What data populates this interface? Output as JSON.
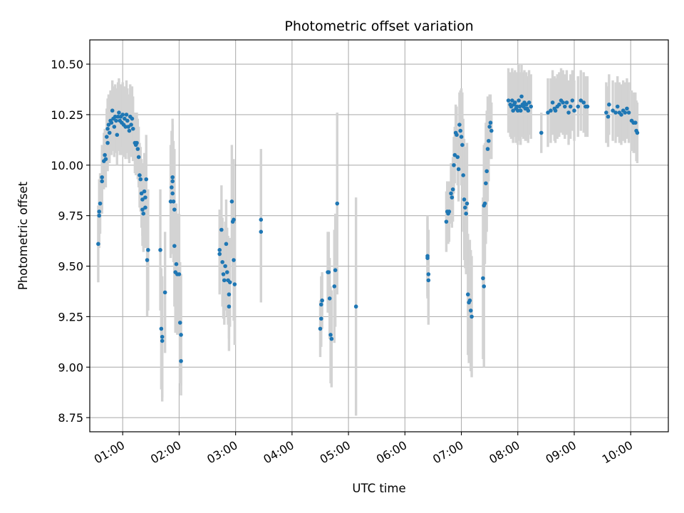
{
  "chart_data": {
    "type": "scatter",
    "title": "Photometric offset variation",
    "xlabel": "UTC time",
    "ylabel": "Photometric offset",
    "x_ticks": [
      "01:00",
      "02:00",
      "03:00",
      "04:00",
      "05:00",
      "06:00",
      "07:00",
      "08:00",
      "09:00",
      "10:00"
    ],
    "y_ticks": [
      "8.75",
      "9.00",
      "9.25",
      "9.50",
      "9.75",
      "10.00",
      "10.25",
      "10.50"
    ],
    "xlim": [
      "00:25",
      "10:40"
    ],
    "ylim": [
      8.68,
      10.62
    ],
    "grid": true,
    "colors": {
      "points": "#1f77b4",
      "errorbars": "#d3d3d3",
      "grid": "#b0b0b0"
    },
    "points": [
      {
        "t": "00:34",
        "y": 9.61,
        "e": 0.19
      },
      {
        "t": "00:35",
        "y": 9.75,
        "e": 0.16
      },
      {
        "t": "00:35",
        "y": 9.77,
        "e": 0.16
      },
      {
        "t": "00:36",
        "y": 9.81,
        "e": 0.15
      },
      {
        "t": "00:38",
        "y": 9.94,
        "e": 0.16
      },
      {
        "t": "00:38",
        "y": 9.92,
        "e": 0.16
      },
      {
        "t": "00:40",
        "y": 10.02,
        "e": 0.14
      },
      {
        "t": "00:41",
        "y": 10.05,
        "e": 0.13
      },
      {
        "t": "00:42",
        "y": 10.03,
        "e": 0.14
      },
      {
        "t": "00:43",
        "y": 10.14,
        "e": 0.14
      },
      {
        "t": "00:44",
        "y": 10.18,
        "e": 0.15
      },
      {
        "t": "00:44",
        "y": 10.11,
        "e": 0.14
      },
      {
        "t": "00:45",
        "y": 10.2,
        "e": 0.15
      },
      {
        "t": "00:46",
        "y": 10.16,
        "e": 0.15
      },
      {
        "t": "00:47",
        "y": 10.22,
        "e": 0.15
      },
      {
        "t": "00:48",
        "y": 10.21,
        "e": 0.16
      },
      {
        "t": "00:49",
        "y": 10.27,
        "e": 0.15
      },
      {
        "t": "00:50",
        "y": 10.23,
        "e": 0.16
      },
      {
        "t": "00:51",
        "y": 10.19,
        "e": 0.15
      },
      {
        "t": "00:52",
        "y": 10.24,
        "e": 0.16
      },
      {
        "t": "00:53",
        "y": 10.22,
        "e": 0.16
      },
      {
        "t": "00:54",
        "y": 10.15,
        "e": 0.15
      },
      {
        "t": "00:55",
        "y": 10.24,
        "e": 0.17
      },
      {
        "t": "00:56",
        "y": 10.26,
        "e": 0.17
      },
      {
        "t": "00:57",
        "y": 10.22,
        "e": 0.17
      },
      {
        "t": "00:58",
        "y": 10.24,
        "e": 0.16
      },
      {
        "t": "00:59",
        "y": 10.21,
        "e": 0.16
      },
      {
        "t": "01:00",
        "y": 10.25,
        "e": 0.16
      },
      {
        "t": "01:01",
        "y": 10.2,
        "e": 0.16
      },
      {
        "t": "01:02",
        "y": 10.23,
        "e": 0.16
      },
      {
        "t": "01:03",
        "y": 10.19,
        "e": 0.16
      },
      {
        "t": "01:04",
        "y": 10.25,
        "e": 0.17
      },
      {
        "t": "01:05",
        "y": 10.22,
        "e": 0.16
      },
      {
        "t": "01:06",
        "y": 10.19,
        "e": 0.16
      },
      {
        "t": "01:07",
        "y": 10.17,
        "e": 0.16
      },
      {
        "t": "01:08",
        "y": 10.24,
        "e": 0.16
      },
      {
        "t": "01:09",
        "y": 10.2,
        "e": 0.16
      },
      {
        "t": "01:10",
        "y": 10.23,
        "e": 0.16
      },
      {
        "t": "01:11",
        "y": 10.18,
        "e": 0.16
      },
      {
        "t": "01:13",
        "y": 10.11,
        "e": 0.15
      },
      {
        "t": "01:14",
        "y": 10.1,
        "e": 0.15
      },
      {
        "t": "01:15",
        "y": 10.11,
        "e": 0.15
      },
      {
        "t": "01:16",
        "y": 10.08,
        "e": 0.15
      },
      {
        "t": "01:17",
        "y": 10.04,
        "e": 0.15
      },
      {
        "t": "01:18",
        "y": 9.95,
        "e": 0.16
      },
      {
        "t": "01:19",
        "y": 9.93,
        "e": 0.16
      },
      {
        "t": "01:20",
        "y": 9.86,
        "e": 0.17
      },
      {
        "t": "01:21",
        "y": 9.83,
        "e": 0.18
      },
      {
        "t": "01:21",
        "y": 9.78,
        "e": 0.18
      },
      {
        "t": "01:22",
        "y": 9.76,
        "e": 0.19
      },
      {
        "t": "01:23",
        "y": 9.87,
        "e": 0.19
      },
      {
        "t": "01:24",
        "y": 9.84,
        "e": 0.2
      },
      {
        "t": "01:24",
        "y": 9.79,
        "e": 0.2
      },
      {
        "t": "01:25",
        "y": 9.93,
        "e": 0.22
      },
      {
        "t": "01:26",
        "y": 9.53,
        "e": 0.28
      },
      {
        "t": "01:27",
        "y": 9.58,
        "e": 0.3
      },
      {
        "t": "01:40",
        "y": 9.58,
        "e": 0.3
      },
      {
        "t": "01:41",
        "y": 9.19,
        "e": 0.3
      },
      {
        "t": "01:42",
        "y": 9.13,
        "e": 0.3
      },
      {
        "t": "01:42",
        "y": 9.15,
        "e": 0.3
      },
      {
        "t": "01:45",
        "y": 9.37,
        "e": 0.3
      },
      {
        "t": "01:51",
        "y": 9.82,
        "e": 0.28
      },
      {
        "t": "01:52",
        "y": 9.89,
        "e": 0.28
      },
      {
        "t": "01:53",
        "y": 9.94,
        "e": 0.29
      },
      {
        "t": "01:53",
        "y": 9.92,
        "e": 0.28
      },
      {
        "t": "01:53",
        "y": 9.86,
        "e": 0.3
      },
      {
        "t": "01:54",
        "y": 9.82,
        "e": 0.3
      },
      {
        "t": "01:55",
        "y": 9.78,
        "e": 0.3
      },
      {
        "t": "01:55",
        "y": 9.6,
        "e": 0.3
      },
      {
        "t": "01:56",
        "y": 9.47,
        "e": 0.3
      },
      {
        "t": "01:57",
        "y": 9.51,
        "e": 0.3
      },
      {
        "t": "01:58",
        "y": 9.46,
        "e": 0.3
      },
      {
        "t": "02:00",
        "y": 9.46,
        "e": 0.3
      },
      {
        "t": "02:01",
        "y": 9.22,
        "e": 0.3
      },
      {
        "t": "02:02",
        "y": 9.16,
        "e": 0.3
      },
      {
        "t": "02:02",
        "y": 9.03,
        "e": 0.12
      },
      {
        "t": "02:43",
        "y": 9.58,
        "e": 0.2
      },
      {
        "t": "02:43",
        "y": 9.56,
        "e": 0.2
      },
      {
        "t": "02:45",
        "y": 9.68,
        "e": 0.22
      },
      {
        "t": "02:46",
        "y": 9.52,
        "e": 0.22
      },
      {
        "t": "02:47",
        "y": 9.46,
        "e": 0.22
      },
      {
        "t": "02:48",
        "y": 9.43,
        "e": 0.22
      },
      {
        "t": "02:49",
        "y": 9.5,
        "e": 0.22
      },
      {
        "t": "02:50",
        "y": 9.61,
        "e": 0.22
      },
      {
        "t": "02:51",
        "y": 9.47,
        "e": 0.22
      },
      {
        "t": "02:52",
        "y": 9.43,
        "e": 0.22
      },
      {
        "t": "02:53",
        "y": 9.36,
        "e": 0.22
      },
      {
        "t": "02:53",
        "y": 9.3,
        "e": 0.22
      },
      {
        "t": "02:54",
        "y": 9.42,
        "e": 0.22
      },
      {
        "t": "02:56",
        "y": 9.82,
        "e": 0.28
      },
      {
        "t": "02:57",
        "y": 9.72,
        "e": 0.3
      },
      {
        "t": "02:58",
        "y": 9.73,
        "e": 0.3
      },
      {
        "t": "02:58",
        "y": 9.53,
        "e": 0.3
      },
      {
        "t": "02:59",
        "y": 9.41,
        "e": 0.3
      },
      {
        "t": "03:27",
        "y": 9.73,
        "e": 0.35
      },
      {
        "t": "03:27",
        "y": 9.67,
        "e": 0.35
      },
      {
        "t": "04:30",
        "y": 9.19,
        "e": 0.14
      },
      {
        "t": "04:31",
        "y": 9.24,
        "e": 0.14
      },
      {
        "t": "04:31",
        "y": 9.31,
        "e": 0.14
      },
      {
        "t": "04:32",
        "y": 9.33,
        "e": 0.14
      },
      {
        "t": "04:38",
        "y": 9.47,
        "e": 0.2
      },
      {
        "t": "04:39",
        "y": 9.47,
        "e": 0.2
      },
      {
        "t": "04:40",
        "y": 9.34,
        "e": 0.2
      },
      {
        "t": "04:41",
        "y": 9.16,
        "e": 0.24
      },
      {
        "t": "04:42",
        "y": 9.14,
        "e": 0.24
      },
      {
        "t": "04:45",
        "y": 9.4,
        "e": 0.28
      },
      {
        "t": "04:46",
        "y": 9.48,
        "e": 0.28
      },
      {
        "t": "04:48",
        "y": 9.81,
        "e": 0.45
      },
      {
        "t": "05:08",
        "y": 9.3,
        "e": 0.54
      },
      {
        "t": "06:24",
        "y": 9.55,
        "e": 0.2
      },
      {
        "t": "06:24",
        "y": 9.54,
        "e": 0.2
      },
      {
        "t": "06:25",
        "y": 9.46,
        "e": 0.22
      },
      {
        "t": "06:25",
        "y": 9.43,
        "e": 0.22
      },
      {
        "t": "06:44",
        "y": 9.72,
        "e": 0.15
      },
      {
        "t": "06:45",
        "y": 9.77,
        "e": 0.15
      },
      {
        "t": "06:46",
        "y": 9.76,
        "e": 0.15
      },
      {
        "t": "06:47",
        "y": 9.77,
        "e": 0.15
      },
      {
        "t": "06:49",
        "y": 9.86,
        "e": 0.15
      },
      {
        "t": "06:50",
        "y": 9.84,
        "e": 0.15
      },
      {
        "t": "06:51",
        "y": 9.88,
        "e": 0.16
      },
      {
        "t": "06:52",
        "y": 10.0,
        "e": 0.14
      },
      {
        "t": "06:53",
        "y": 10.05,
        "e": 0.14
      },
      {
        "t": "06:54",
        "y": 10.16,
        "e": 0.14
      },
      {
        "t": "06:55",
        "y": 10.15,
        "e": 0.14
      },
      {
        "t": "06:56",
        "y": 10.04,
        "e": 0.14
      },
      {
        "t": "06:57",
        "y": 9.98,
        "e": 0.16
      },
      {
        "t": "06:58",
        "y": 10.2,
        "e": 0.16
      },
      {
        "t": "06:59",
        "y": 10.17,
        "e": 0.2
      },
      {
        "t": "07:00",
        "y": 10.14,
        "e": 0.24
      },
      {
        "t": "07:01",
        "y": 10.1,
        "e": 0.26
      },
      {
        "t": "07:02",
        "y": 9.95,
        "e": 0.28
      },
      {
        "t": "07:03",
        "y": 9.83,
        "e": 0.3
      },
      {
        "t": "07:04",
        "y": 9.79,
        "e": 0.3
      },
      {
        "t": "07:05",
        "y": 9.76,
        "e": 0.3
      },
      {
        "t": "07:06",
        "y": 9.81,
        "e": 0.3
      },
      {
        "t": "07:07",
        "y": 9.36,
        "e": 0.3
      },
      {
        "t": "07:08",
        "y": 9.32,
        "e": 0.3
      },
      {
        "t": "07:09",
        "y": 9.33,
        "e": 0.3
      },
      {
        "t": "07:10",
        "y": 9.28,
        "e": 0.3
      },
      {
        "t": "07:11",
        "y": 9.25,
        "e": 0.3
      },
      {
        "t": "07:23",
        "y": 9.44,
        "e": 0.4
      },
      {
        "t": "07:24",
        "y": 9.4,
        "e": 0.4
      },
      {
        "t": "07:24",
        "y": 9.8,
        "e": 0.3
      },
      {
        "t": "07:25",
        "y": 9.81,
        "e": 0.3
      },
      {
        "t": "07:26",
        "y": 9.91,
        "e": 0.3
      },
      {
        "t": "07:27",
        "y": 9.97,
        "e": 0.3
      },
      {
        "t": "07:28",
        "y": 10.08,
        "e": 0.26
      },
      {
        "t": "07:29",
        "y": 10.12,
        "e": 0.2
      },
      {
        "t": "07:30",
        "y": 10.19,
        "e": 0.16
      },
      {
        "t": "07:31",
        "y": 10.21,
        "e": 0.14
      },
      {
        "t": "07:32",
        "y": 10.17,
        "e": 0.14
      },
      {
        "t": "07:50",
        "y": 10.32,
        "e": 0.16
      },
      {
        "t": "07:52",
        "y": 10.3,
        "e": 0.16
      },
      {
        "t": "07:53",
        "y": 10.29,
        "e": 0.16
      },
      {
        "t": "07:54",
        "y": 10.32,
        "e": 0.16
      },
      {
        "t": "07:55",
        "y": 10.27,
        "e": 0.16
      },
      {
        "t": "07:56",
        "y": 10.3,
        "e": 0.16
      },
      {
        "t": "07:57",
        "y": 10.31,
        "e": 0.16
      },
      {
        "t": "07:58",
        "y": 10.28,
        "e": 0.17
      },
      {
        "t": "07:59",
        "y": 10.29,
        "e": 0.17
      },
      {
        "t": "08:00",
        "y": 10.27,
        "e": 0.17
      },
      {
        "t": "08:01",
        "y": 10.32,
        "e": 0.18
      },
      {
        "t": "08:02",
        "y": 10.29,
        "e": 0.17
      },
      {
        "t": "08:03",
        "y": 10.27,
        "e": 0.17
      },
      {
        "t": "08:04",
        "y": 10.34,
        "e": 0.16
      },
      {
        "t": "08:05",
        "y": 10.3,
        "e": 0.16
      },
      {
        "t": "08:06",
        "y": 10.29,
        "e": 0.16
      },
      {
        "t": "08:07",
        "y": 10.31,
        "e": 0.16
      },
      {
        "t": "08:08",
        "y": 10.28,
        "e": 0.16
      },
      {
        "t": "08:09",
        "y": 10.3,
        "e": 0.16
      },
      {
        "t": "08:10",
        "y": 10.28,
        "e": 0.16
      },
      {
        "t": "08:11",
        "y": 10.27,
        "e": 0.16
      },
      {
        "t": "08:12",
        "y": 10.31,
        "e": 0.16
      },
      {
        "t": "08:14",
        "y": 10.29,
        "e": 0.16
      },
      {
        "t": "08:25",
        "y": 10.16,
        "e": 0.1
      },
      {
        "t": "08:32",
        "y": 10.26,
        "e": 0.17
      },
      {
        "t": "08:35",
        "y": 10.27,
        "e": 0.16
      },
      {
        "t": "08:37",
        "y": 10.31,
        "e": 0.16
      },
      {
        "t": "08:39",
        "y": 10.28,
        "e": 0.16
      },
      {
        "t": "08:40",
        "y": 10.27,
        "e": 0.16
      },
      {
        "t": "08:42",
        "y": 10.29,
        "e": 0.16
      },
      {
        "t": "08:44",
        "y": 10.3,
        "e": 0.16
      },
      {
        "t": "08:46",
        "y": 10.32,
        "e": 0.16
      },
      {
        "t": "08:48",
        "y": 10.31,
        "e": 0.16
      },
      {
        "t": "08:50",
        "y": 10.29,
        "e": 0.16
      },
      {
        "t": "08:52",
        "y": 10.31,
        "e": 0.16
      },
      {
        "t": "08:54",
        "y": 10.26,
        "e": 0.16
      },
      {
        "t": "08:56",
        "y": 10.29,
        "e": 0.16
      },
      {
        "t": "08:58",
        "y": 10.32,
        "e": 0.15
      },
      {
        "t": "09:00",
        "y": 10.27,
        "e": 0.15
      },
      {
        "t": "09:04",
        "y": 10.29,
        "e": 0.15
      },
      {
        "t": "09:07",
        "y": 10.32,
        "e": 0.15
      },
      {
        "t": "09:10",
        "y": 10.31,
        "e": 0.15
      },
      {
        "t": "09:12",
        "y": 10.29,
        "e": 0.15
      },
      {
        "t": "09:14",
        "y": 10.29,
        "e": 0.15
      },
      {
        "t": "09:34",
        "y": 10.26,
        "e": 0.15
      },
      {
        "t": "09:36",
        "y": 10.24,
        "e": 0.15
      },
      {
        "t": "09:37",
        "y": 10.3,
        "e": 0.15
      },
      {
        "t": "09:41",
        "y": 10.27,
        "e": 0.15
      },
      {
        "t": "09:44",
        "y": 10.26,
        "e": 0.15
      },
      {
        "t": "09:46",
        "y": 10.29,
        "e": 0.15
      },
      {
        "t": "09:48",
        "y": 10.26,
        "e": 0.15
      },
      {
        "t": "09:50",
        "y": 10.25,
        "e": 0.15
      },
      {
        "t": "09:52",
        "y": 10.27,
        "e": 0.15
      },
      {
        "t": "09:54",
        "y": 10.26,
        "e": 0.15
      },
      {
        "t": "09:56",
        "y": 10.28,
        "e": 0.15
      },
      {
        "t": "09:58",
        "y": 10.26,
        "e": 0.15
      },
      {
        "t": "10:01",
        "y": 10.22,
        "e": 0.15
      },
      {
        "t": "10:03",
        "y": 10.21,
        "e": 0.15
      },
      {
        "t": "10:05",
        "y": 10.21,
        "e": 0.15
      },
      {
        "t": "10:06",
        "y": 10.17,
        "e": 0.15
      },
      {
        "t": "10:07",
        "y": 10.16,
        "e": 0.15
      }
    ]
  }
}
